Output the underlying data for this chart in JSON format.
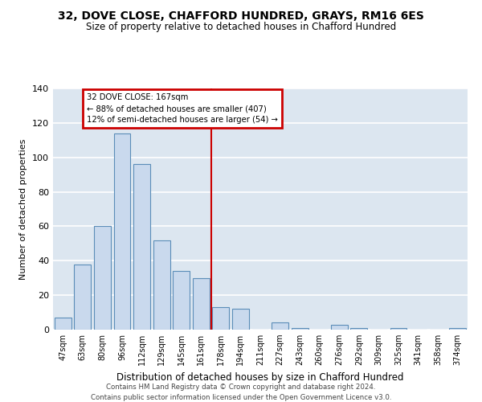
{
  "title": "32, DOVE CLOSE, CHAFFORD HUNDRED, GRAYS, RM16 6ES",
  "subtitle": "Size of property relative to detached houses in Chafford Hundred",
  "xlabel": "Distribution of detached houses by size in Chafford Hundred",
  "ylabel": "Number of detached properties",
  "bar_labels": [
    "47sqm",
    "63sqm",
    "80sqm",
    "96sqm",
    "112sqm",
    "129sqm",
    "145sqm",
    "161sqm",
    "178sqm",
    "194sqm",
    "211sqm",
    "227sqm",
    "243sqm",
    "260sqm",
    "276sqm",
    "292sqm",
    "309sqm",
    "325sqm",
    "341sqm",
    "358sqm",
    "374sqm"
  ],
  "bar_values": [
    7,
    38,
    60,
    114,
    96,
    52,
    34,
    30,
    13,
    12,
    0,
    4,
    1,
    0,
    3,
    1,
    0,
    1,
    0,
    0,
    1
  ],
  "bar_color": "#c9d9ed",
  "bar_edge_color": "#5b8db8",
  "vline_x": 7.5,
  "vline_color": "#cc0000",
  "annotation_title": "32 DOVE CLOSE: 167sqm",
  "annotation_line1": "← 88% of detached houses are smaller (407)",
  "annotation_line2": "12% of semi-detached houses are larger (54) →",
  "annotation_box_color": "#cc0000",
  "ylim": [
    0,
    140
  ],
  "yticks": [
    0,
    20,
    40,
    60,
    80,
    100,
    120,
    140
  ],
  "background_color": "#dce6f0",
  "fig_background_color": "#ffffff",
  "grid_color": "#ffffff",
  "footer_line1": "Contains HM Land Registry data © Crown copyright and database right 2024.",
  "footer_line2": "Contains public sector information licensed under the Open Government Licence v3.0."
}
